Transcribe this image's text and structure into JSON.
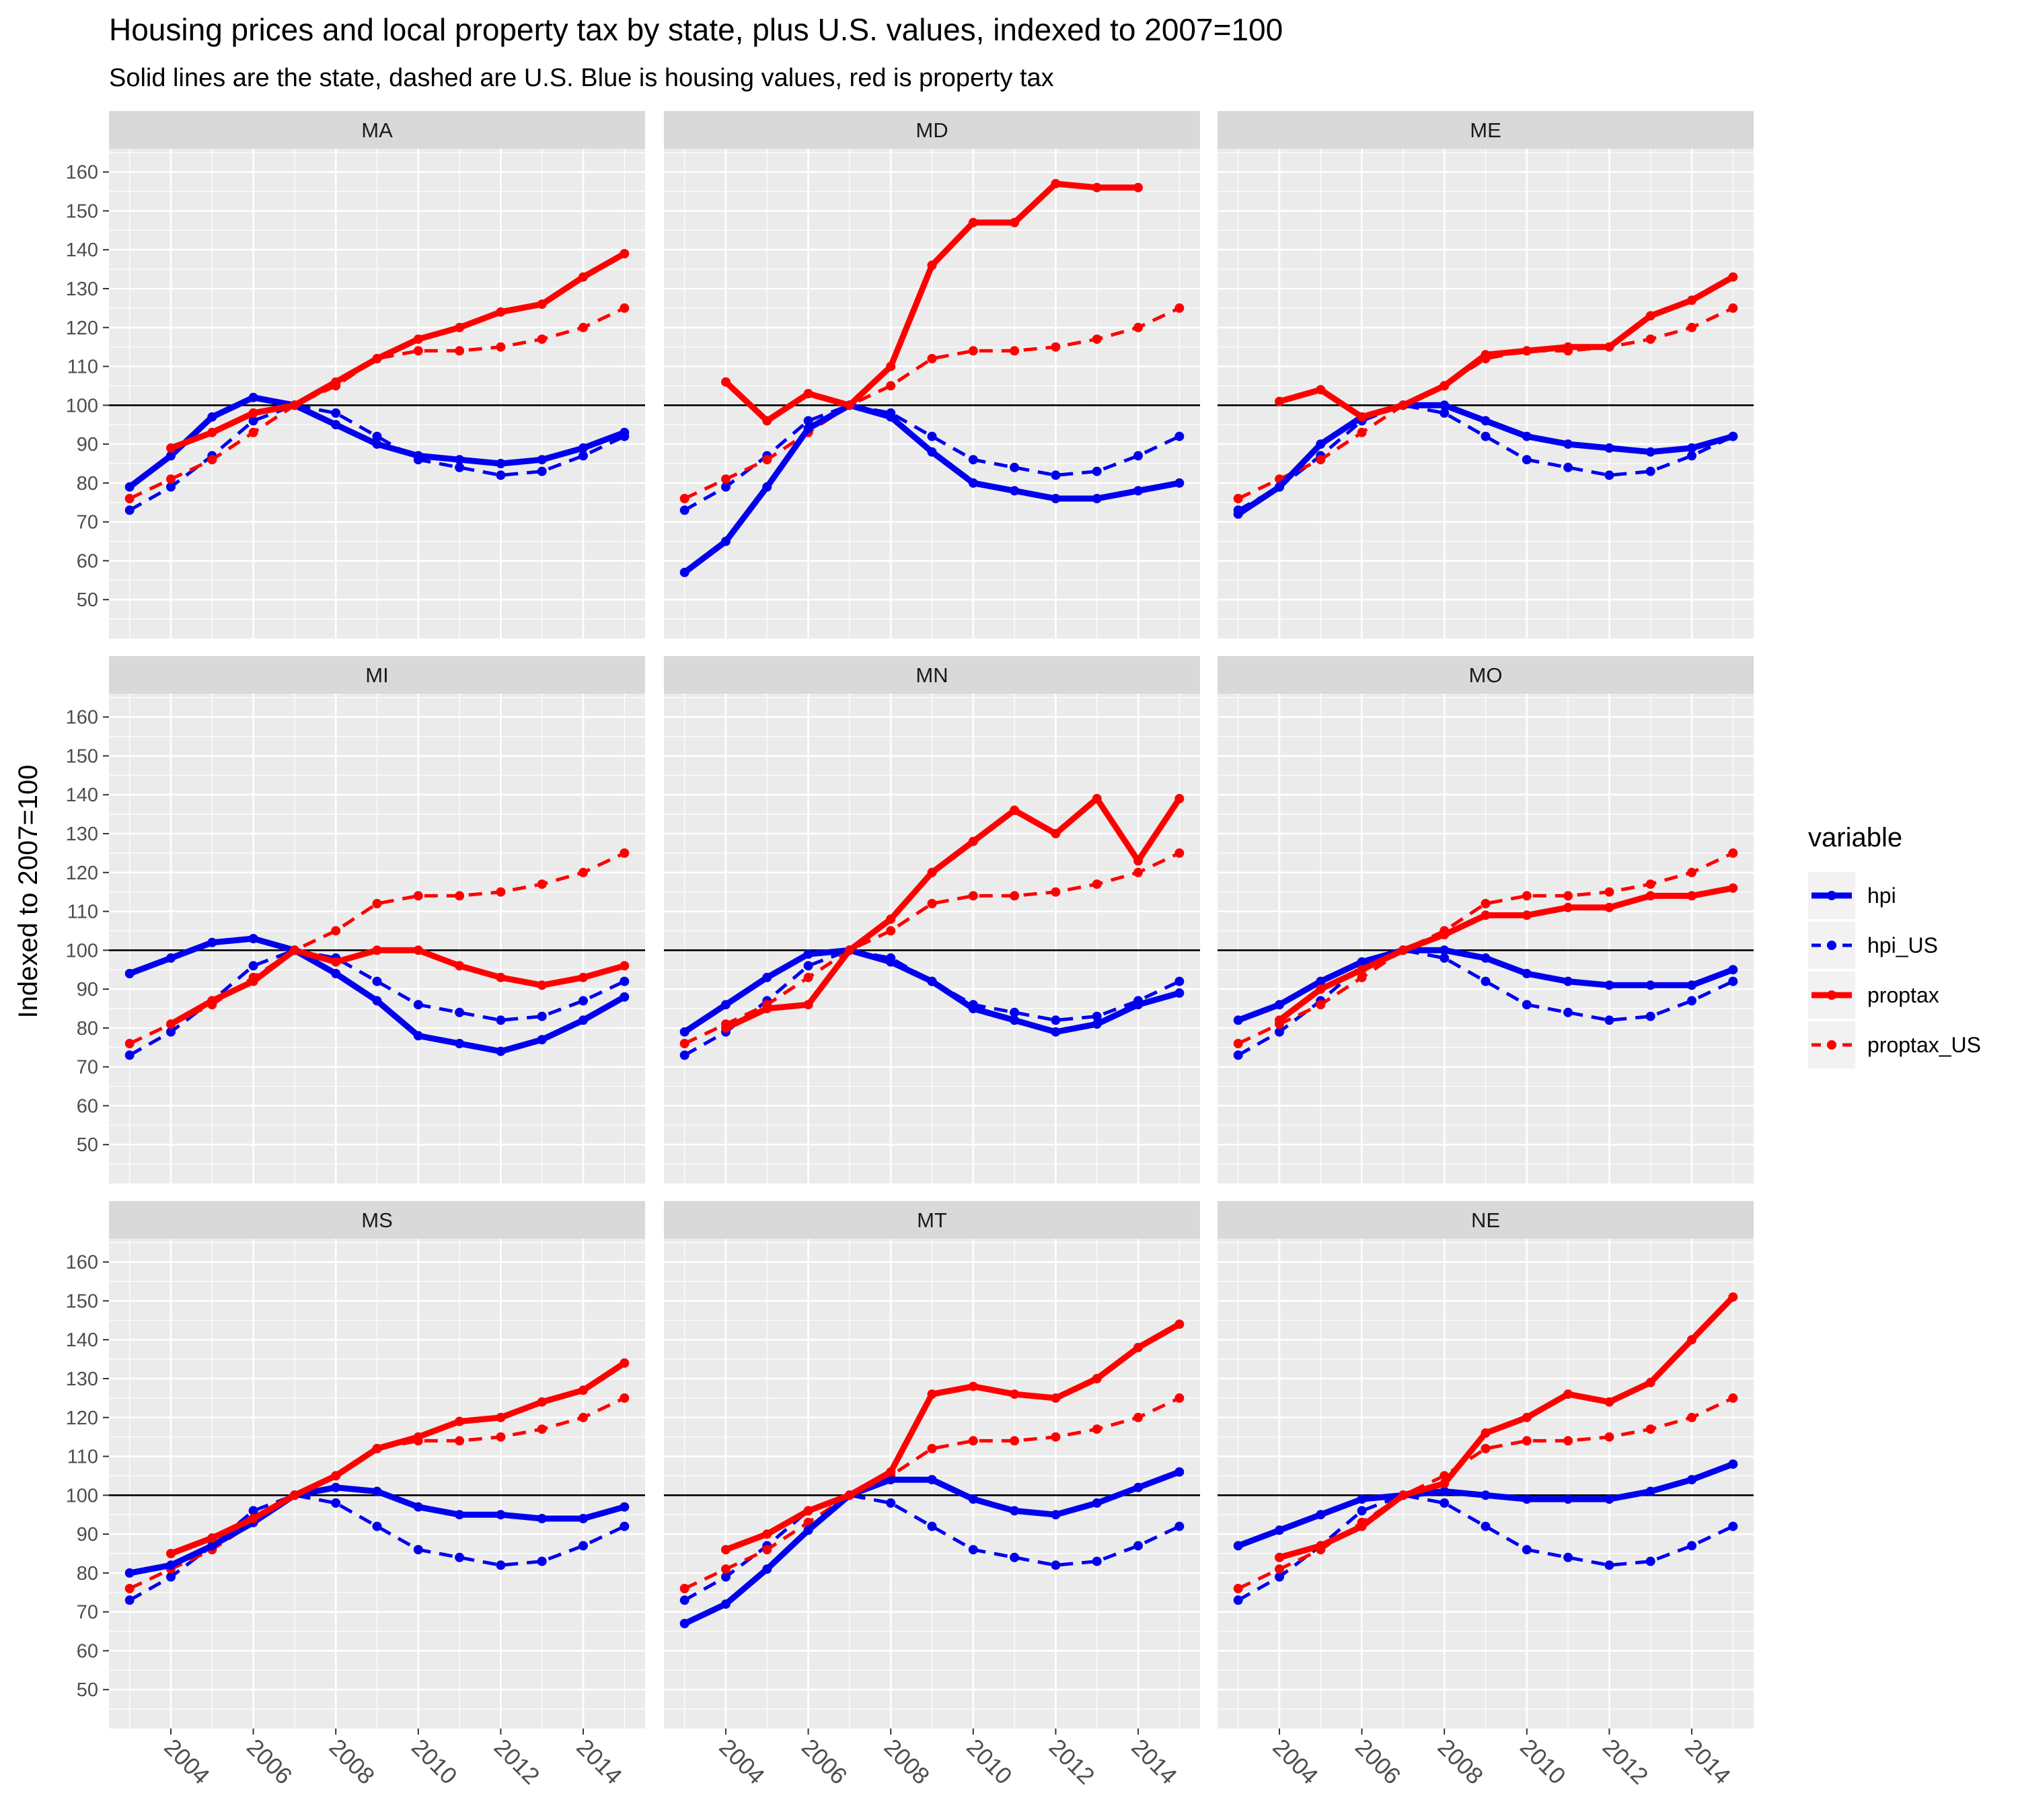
{
  "chart_data": {
    "type": "line",
    "title": "Housing prices and local property tax by state, plus U.S. values, indexed to 2007=100",
    "subtitle": "Solid lines are the state, dashed are U.S. Blue is housing values, red is property tax",
    "ylabel": "Indexed to 2007=100",
    "xlabel": "",
    "x": [
      2003,
      2004,
      2005,
      2006,
      2007,
      2008,
      2009,
      2010,
      2011,
      2012,
      2013,
      2014,
      2015
    ],
    "x_ticks": [
      "2004",
      "2006",
      "2008",
      "2010",
      "2012",
      "2014"
    ],
    "y_ticks": [
      "50",
      "60",
      "70",
      "80",
      "90",
      "100",
      "110",
      "120",
      "130",
      "140",
      "150",
      "160"
    ],
    "xlim": [
      2002.5,
      2015.5
    ],
    "ylim": [
      40,
      166
    ],
    "reference_line": 100,
    "grid": true,
    "legend": {
      "title": "variable",
      "position": "right",
      "entries": [
        "hpi",
        "hpi_US",
        "proptax",
        "proptax_US"
      ]
    },
    "colors": {
      "hpi": "#0000ee",
      "proptax": "#ff0000",
      "panel_bg": "#ebebeb",
      "strip_bg": "#d9d9d9",
      "grid": "#ffffff"
    },
    "us_series": {
      "hpi_US": [
        73,
        79,
        87,
        96,
        100,
        98,
        92,
        86,
        84,
        82,
        83,
        87,
        92
      ],
      "proptax_US": [
        76,
        81,
        86,
        93,
        100,
        105,
        112,
        114,
        114,
        115,
        117,
        120,
        125
      ]
    },
    "panels": [
      {
        "state": "MA",
        "hpi": [
          79,
          87,
          97,
          102,
          100,
          95,
          90,
          87,
          86,
          85,
          86,
          89,
          93
        ],
        "proptax": [
          null,
          89,
          93,
          98,
          100,
          106,
          112,
          117,
          120,
          124,
          126,
          133,
          139
        ]
      },
      {
        "state": "MD",
        "hpi": [
          57,
          65,
          79,
          94,
          100,
          97,
          88,
          80,
          78,
          76,
          76,
          78,
          80
        ],
        "proptax": [
          null,
          106,
          96,
          103,
          100,
          110,
          136,
          147,
          147,
          157,
          156,
          156,
          null
        ]
      },
      {
        "state": "ME",
        "hpi": [
          72,
          79,
          90,
          97,
          100,
          100,
          96,
          92,
          90,
          89,
          88,
          89,
          92
        ],
        "proptax": [
          null,
          101,
          104,
          97,
          100,
          105,
          113,
          114,
          115,
          115,
          123,
          127,
          133
        ]
      },
      {
        "state": "MI",
        "hpi": [
          94,
          98,
          102,
          103,
          100,
          94,
          87,
          78,
          76,
          74,
          77,
          82,
          88
        ],
        "proptax": [
          null,
          81,
          87,
          92,
          100,
          97,
          100,
          100,
          96,
          93,
          91,
          93,
          96
        ]
      },
      {
        "state": "MN",
        "hpi": [
          79,
          86,
          93,
          99,
          100,
          97,
          92,
          85,
          82,
          79,
          81,
          86,
          89
        ],
        "proptax": [
          null,
          80,
          85,
          86,
          100,
          108,
          120,
          128,
          136,
          130,
          139,
          123,
          139
        ]
      },
      {
        "state": "MO",
        "hpi": [
          82,
          86,
          92,
          97,
          100,
          100,
          98,
          94,
          92,
          91,
          91,
          91,
          95
        ],
        "proptax": [
          null,
          82,
          90,
          95,
          100,
          104,
          109,
          109,
          111,
          111,
          114,
          114,
          116
        ]
      },
      {
        "state": "MS",
        "hpi": [
          80,
          82,
          87,
          93,
          100,
          102,
          101,
          97,
          95,
          95,
          94,
          94,
          97
        ],
        "proptax": [
          null,
          85,
          89,
          94,
          100,
          105,
          112,
          115,
          119,
          120,
          124,
          127,
          134
        ]
      },
      {
        "state": "MT",
        "hpi": [
          67,
          72,
          81,
          91,
          100,
          104,
          104,
          99,
          96,
          95,
          98,
          102,
          106
        ],
        "proptax": [
          null,
          86,
          90,
          96,
          100,
          106,
          126,
          128,
          126,
          125,
          130,
          138,
          144
        ]
      },
      {
        "state": "NE",
        "hpi": [
          87,
          91,
          95,
          99,
          100,
          101,
          100,
          99,
          99,
          99,
          101,
          104,
          108
        ],
        "proptax": [
          null,
          84,
          87,
          92,
          100,
          103,
          116,
          120,
          126,
          124,
          129,
          140,
          151
        ]
      }
    ]
  }
}
